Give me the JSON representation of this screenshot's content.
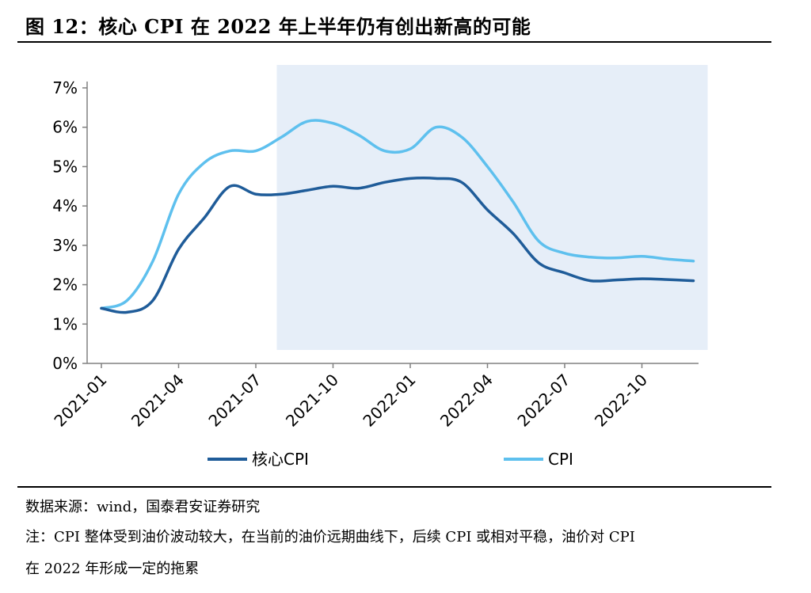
{
  "figure": {
    "title": "图 12：核心 CPI 在 2022 年上半年仍有创出新高的可能",
    "source": "数据来源：wind，国泰君安证券研究",
    "note_line1": "注：CPI 整体受到油价波动较大，在当前的油价远期曲线下，后续 CPI 或相对平稳，油价对 CPI",
    "note_line2": "在 2022 年形成一定的拖累"
  },
  "chart_data": {
    "type": "line",
    "title": "",
    "xlabel": "",
    "ylabel": "",
    "ylim": [
      0,
      7
    ],
    "yticks": [
      "0%",
      "1%",
      "2%",
      "3%",
      "4%",
      "5%",
      "6%",
      "7%"
    ],
    "x": [
      "2021-01",
      "2021-02",
      "2021-03",
      "2021-04",
      "2021-05",
      "2021-06",
      "2021-07",
      "2021-08",
      "2021-09",
      "2021-10",
      "2021-11",
      "2021-12",
      "2022-01",
      "2022-02",
      "2022-03",
      "2022-04",
      "2022-05",
      "2022-06",
      "2022-07",
      "2022-08",
      "2022-09",
      "2022-10",
      "2022-11",
      "2022-12"
    ],
    "xtick_labels": [
      "2021-01",
      "2021-04",
      "2021-07",
      "2021-10",
      "2022-01",
      "2022-04",
      "2022-07",
      "2022-10"
    ],
    "shaded_region": {
      "from": "2021-08",
      "to": "2022-12",
      "color": "#e6eef8"
    },
    "legend_position": "bottom",
    "grid": false,
    "series": [
      {
        "name": "核心CPI",
        "color": "#1f5c99",
        "values": [
          1.4,
          1.3,
          1.6,
          2.9,
          3.7,
          4.5,
          4.3,
          4.3,
          4.4,
          4.5,
          4.45,
          4.6,
          4.7,
          4.7,
          4.6,
          3.9,
          3.3,
          2.55,
          2.3,
          2.1,
          2.12,
          2.15,
          2.13,
          2.1
        ]
      },
      {
        "name": "CPI",
        "color": "#5ec0ee",
        "values": [
          1.4,
          1.6,
          2.6,
          4.3,
          5.1,
          5.4,
          5.4,
          5.75,
          6.15,
          6.1,
          5.8,
          5.4,
          5.45,
          6.0,
          5.75,
          5.0,
          4.1,
          3.1,
          2.8,
          2.7,
          2.68,
          2.72,
          2.65,
          2.6
        ]
      }
    ]
  }
}
